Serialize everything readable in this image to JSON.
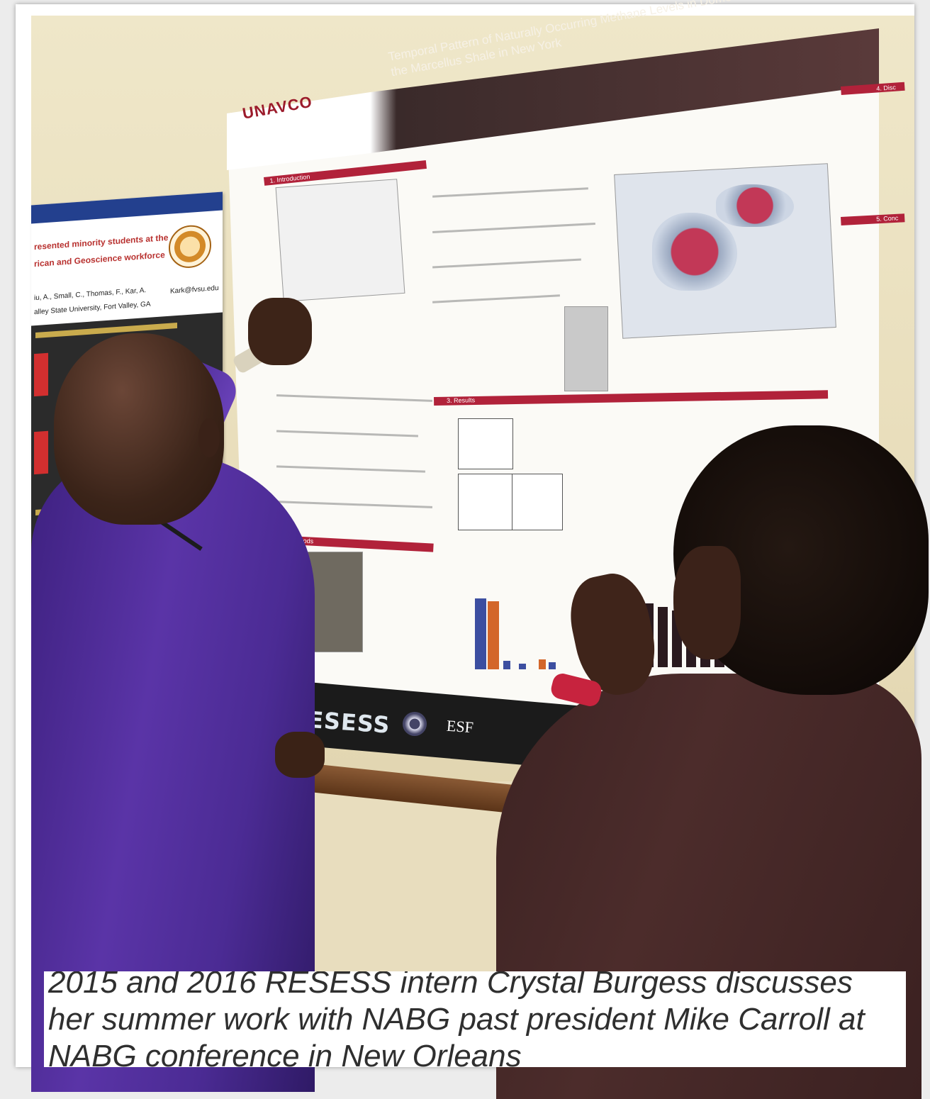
{
  "caption": "2015 and 2016 RESESS intern Crystal Burgess discusses her summer work with NABG past president Mike Carroll at NABG conference in New Orleans",
  "poster": {
    "logo": "UNAVCO",
    "title": "Temporal Pattern of Naturally Occurring Methane Levels in Domestic Water Wells Overlying the Marcellus Shale in New York",
    "sections": {
      "introduction": "1. Introduction",
      "methods": "2. Methods",
      "results": "3. Results",
      "discussion": "4. Disc",
      "conclusion": "5. Conc"
    },
    "footer": {
      "program": "RESESS",
      "partner": "ESF"
    }
  },
  "left_poster": {
    "title_line_1": "resented minority students at the",
    "title_line_2": "rican and Geoscience workforce",
    "authors": "iu, A., Small, C., Thomas, F., Kar, A.",
    "affiliation": "alley State University, Fort Valley, GA",
    "email": "Kark@fvsu.edu"
  },
  "colors": {
    "poster_accent": "#b1223a",
    "shirt": "#5a34a7",
    "left_poster_band": "#23408e"
  }
}
